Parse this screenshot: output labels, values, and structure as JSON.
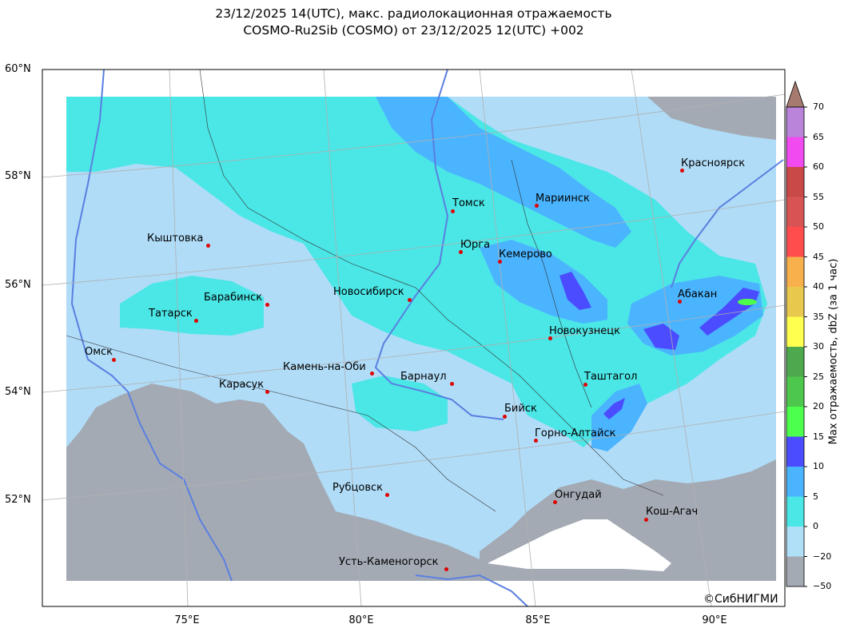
{
  "title_line1": "23/12/2025 14(UTC), макс. радиолокационная отражаемость",
  "title_line2": "COSMO-Ru2Sib (COSMO) от 23/12/2025 12(UTC) +002",
  "lat_labels": [
    "60°N",
    "58°N",
    "56°N",
    "54°N",
    "52°N"
  ],
  "lon_labels": [
    "75°E",
    "80°E",
    "85°E",
    "90°E"
  ],
  "colorbar": {
    "title": "Мах отражаемость, dbZ (за 1 час)",
    "ticks": [
      "70",
      "65",
      "60",
      "55",
      "50",
      "45",
      "40",
      "35",
      "30",
      "25",
      "20",
      "15",
      "10",
      "5",
      "0",
      "−20",
      "−50"
    ],
    "colors": [
      "#b984d9",
      "#f04af0",
      "#c94848",
      "#d85454",
      "#ff4d4d",
      "#f7b04c",
      "#e9c84e",
      "#ffff4f",
      "#4ea84e",
      "#4dc84d",
      "#4dff4d",
      "#4b4bff",
      "#4bb4ff",
      "#4be6e6",
      "#b0e0f8",
      "#a4aab4"
    ],
    "extend_color": "#a67a6e"
  },
  "cities": [
    {
      "name": "Красноярск"
    },
    {
      "name": "Томск"
    },
    {
      "name": "Мариинск"
    },
    {
      "name": "Кыштовка"
    },
    {
      "name": "Юрга"
    },
    {
      "name": "Кемерово"
    },
    {
      "name": "Барабинск"
    },
    {
      "name": "Новосибирск"
    },
    {
      "name": "Абакан"
    },
    {
      "name": "Татарск"
    },
    {
      "name": "Новокузнецк"
    },
    {
      "name": "Омск"
    },
    {
      "name": "Камень-на-Оби"
    },
    {
      "name": "Барнаул"
    },
    {
      "name": "Таштагол"
    },
    {
      "name": "Карасук"
    },
    {
      "name": "Бийск"
    },
    {
      "name": "Горно-Алтайск"
    },
    {
      "name": "Рубцовск"
    },
    {
      "name": "Онгудай"
    },
    {
      "name": "Кош-Агач"
    },
    {
      "name": "Усть-Каменогорск"
    }
  ],
  "copyright": "©СибНИГМИ"
}
